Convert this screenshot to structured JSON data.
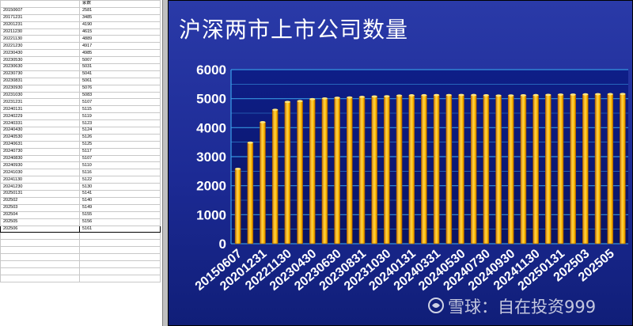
{
  "sheet": {
    "header": [
      "",
      "家数"
    ],
    "rows": [
      [
        "20150607",
        "2581"
      ],
      [
        "20171231",
        "3485"
      ],
      [
        "20201231",
        "4190"
      ],
      [
        "20211230",
        "4615"
      ],
      [
        "20221130",
        "4889"
      ],
      [
        "20221230",
        "4917"
      ],
      [
        "20230430",
        "4985"
      ],
      [
        "20230530",
        "5007"
      ],
      [
        "20230630",
        "5031"
      ],
      [
        "20230730",
        "5041"
      ],
      [
        "20230831",
        "5061"
      ],
      [
        "20230930",
        "5076"
      ],
      [
        "20231030",
        "5083"
      ],
      [
        "20231231",
        "5107"
      ],
      [
        "20240131",
        "5115"
      ],
      [
        "20240229",
        "5119"
      ],
      [
        "20240331",
        "5123"
      ],
      [
        "20240430",
        "5124"
      ],
      [
        "20240530",
        "5126"
      ],
      [
        "20240631",
        "5125"
      ],
      [
        "20240730",
        "5117"
      ],
      [
        "20240830",
        "5107"
      ],
      [
        "20240930",
        "5110"
      ],
      [
        "20241030",
        "5116"
      ],
      [
        "20241130",
        "5122"
      ],
      [
        "20241230",
        "5130"
      ],
      [
        "20250131",
        "5141"
      ],
      [
        "202502",
        "5140"
      ],
      [
        "202503",
        "5149"
      ],
      [
        "202504",
        "5155"
      ],
      [
        "202505",
        "5156"
      ],
      [
        "202506",
        "5161"
      ]
    ],
    "blank_rows": 7
  },
  "chart_data": {
    "type": "bar",
    "title": "沪深两市上市公司数量",
    "xlabel": "",
    "ylabel": "",
    "ylim": [
      0,
      6000
    ],
    "yticks": [
      0,
      1000,
      2000,
      3000,
      4000,
      5000,
      6000
    ],
    "grid": true,
    "legend": "none",
    "categories": [
      "20150607",
      "20171231",
      "20201231",
      "20211230",
      "20221130",
      "20221230",
      "20230430",
      "20230530",
      "20230630",
      "20230730",
      "20230831",
      "20230930",
      "20231030",
      "20231231",
      "20240131",
      "20240229",
      "20240331",
      "20240430",
      "20240530",
      "20240631",
      "20240730",
      "20240830",
      "20240930",
      "20241030",
      "20241130",
      "20241230",
      "20250131",
      "202502",
      "202503",
      "202504",
      "202505",
      "202506"
    ],
    "values": [
      2581,
      3485,
      4190,
      4615,
      4889,
      4917,
      4985,
      5007,
      5031,
      5041,
      5061,
      5076,
      5083,
      5107,
      5115,
      5119,
      5123,
      5124,
      5126,
      5125,
      5117,
      5107,
      5110,
      5116,
      5122,
      5130,
      5141,
      5140,
      5149,
      5155,
      5156,
      5161
    ],
    "shown_tick_labels": [
      "20150607",
      "20201231",
      "20221130",
      "20230430",
      "20230630",
      "20230831",
      "20231030",
      "20240131",
      "20240331",
      "20240530",
      "20240730",
      "20240930",
      "20241130",
      "20250131",
      "202503",
      "202505"
    ]
  },
  "colors": {
    "panel_top": "#2838a8",
    "panel_bottom": "#0c1a70",
    "plot_top": "#102080",
    "plot_bottom": "#0a1660",
    "grid": "#3aa0e8",
    "bar_fill": "#ffc000",
    "bar_dark": "#d08000",
    "bar_light": "#ffe680",
    "text": "#ffffff"
  },
  "watermark": "雪球：自在投资999"
}
